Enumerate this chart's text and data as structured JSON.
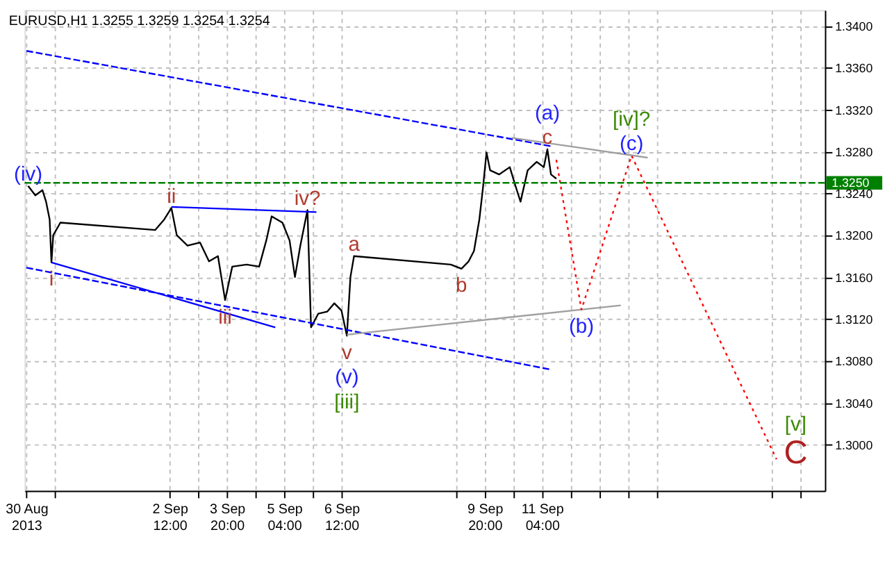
{
  "chart_data": {
    "type": "line",
    "title": "EURUSD,H1  1.3255 1.3259 1.3254 1.3254",
    "xlim": [
      "2013-08-30T03:00",
      "2013-09-17T18:00"
    ],
    "ylim": [
      1.2956,
      1.3415
    ],
    "xticks": [
      {
        "value": "2013-08-30T04:00",
        "label": "30 Aug 2013"
      },
      {
        "value": "2013-08-30T20:00",
        "label": null
      },
      {
        "value": "2013-09-02T12:00",
        "label": "2 Sep 12:00"
      },
      {
        "value": "2013-09-03T04:00",
        "label": null
      },
      {
        "value": "2013-09-03T20:00",
        "label": "3 Sep 20:00"
      },
      {
        "value": "2013-09-04T12:00",
        "label": null
      },
      {
        "value": "2013-09-05T04:00",
        "label": "5 Sep 04:00"
      },
      {
        "value": "2013-09-05T20:00",
        "label": null
      },
      {
        "value": "2013-09-06T12:00",
        "label": "6 Sep 12:00"
      },
      {
        "value": "2013-09-09T04:00",
        "label": null
      },
      {
        "value": "2013-09-09T20:00",
        "label": "9 Sep 20:00"
      },
      {
        "value": "2013-09-10T12:00",
        "label": null
      },
      {
        "value": "2013-09-11T04:00",
        "label": "11 Sep 04:00"
      },
      {
        "value": "2013-09-11T20:00",
        "label": null
      },
      {
        "value": "2013-09-12T12:00",
        "label": null
      },
      {
        "value": "2013-09-13T04:00",
        "label": null
      },
      {
        "value": "2013-09-13T20:00",
        "label": null
      },
      {
        "value": "2013-09-16T12:00",
        "label": null
      },
      {
        "value": "2013-09-17T04:00",
        "label": null
      }
    ],
    "yticks": [
      {
        "value": 1.3,
        "label": "1.3000"
      },
      {
        "value": 1.304,
        "label": "1.3040"
      },
      {
        "value": 1.308,
        "label": "1.3080"
      },
      {
        "value": 1.312,
        "label": "1.3120"
      },
      {
        "value": 1.316,
        "label": "1.3160"
      },
      {
        "value": 1.32,
        "label": "1.3200"
      },
      {
        "value": 1.324,
        "label": "1.3240"
      },
      {
        "value": 1.328,
        "label": "1.3280"
      },
      {
        "value": 1.332,
        "label": "1.3320"
      },
      {
        "value": 1.336,
        "label": "1.3360"
      },
      {
        "value": 1.34,
        "label": "1.3400"
      }
    ],
    "grid": true,
    "marker": "none",
    "series": [
      {
        "color": "#000000",
        "line_style": "solid",
        "x": [
          "2013-08-30T05:00",
          "2013-08-30T09:00",
          "2013-08-30T13:00",
          "2013-08-30T15:00",
          "2013-08-30T17:00",
          "2013-08-30T18:00",
          "2013-08-30T19:00",
          "2013-08-30T23:00",
          "2013-09-02T04:00",
          "2013-09-02T09:00",
          "2013-09-02T13:00",
          "2013-09-02T16:00",
          "2013-09-02T22:00",
          "2013-09-03T05:00",
          "2013-09-03T10:00",
          "2013-09-03T15:00",
          "2013-09-03T19:00",
          "2013-09-03T23:00",
          "2013-09-04T07:00",
          "2013-09-04T14:00",
          "2013-09-04T18:00",
          "2013-09-04T21:00",
          "2013-09-05T03:00",
          "2013-09-05T07:00",
          "2013-09-05T10:00",
          "2013-09-05T13:00",
          "2013-09-05T17:00",
          "2013-09-05T19:00",
          "2013-09-05T23:00",
          "2013-09-06T04:00",
          "2013-09-06T08:00",
          "2013-09-06T12:00",
          "2013-09-06T15:00",
          "2013-09-06T17:00",
          "2013-09-06T19:00",
          "2013-09-09T01:00",
          "2013-09-09T07:00",
          "2013-09-09T11:00",
          "2013-09-09T14:00",
          "2013-09-09T17:00",
          "2013-09-09T19:00",
          "2013-09-09T21:00",
          "2013-09-09T23:00",
          "2013-09-10T04:00",
          "2013-09-10T10:00",
          "2013-09-10T13:00",
          "2013-09-10T16:00",
          "2013-09-10T20:00",
          "2013-09-11T01:00",
          "2013-09-11T05:00",
          "2013-09-11T07:00",
          "2013-09-11T09:00",
          "2013-09-11T12:00"
        ],
        "values": [
          1.3247,
          1.3238,
          1.3243,
          1.3232,
          1.3215,
          1.3174,
          1.32,
          1.3212,
          1.3205,
          1.3215,
          1.3226,
          1.32,
          1.319,
          1.3193,
          1.3175,
          1.318,
          1.3138,
          1.317,
          1.3172,
          1.317,
          1.3195,
          1.3218,
          1.3212,
          1.3195,
          1.316,
          1.319,
          1.3224,
          1.3112,
          1.3125,
          1.3127,
          1.3135,
          1.3128,
          1.3104,
          1.316,
          1.318,
          1.3172,
          1.3168,
          1.3175,
          1.3185,
          1.3215,
          1.3245,
          1.3279,
          1.3262,
          1.3258,
          1.3265,
          1.3248,
          1.3232,
          1.3262,
          1.327,
          1.3265,
          1.3282,
          1.3258,
          1.3254
        ]
      },
      {
        "color": "#0000ff",
        "line_style": "dashed",
        "x": [
          "2013-08-30T04:00",
          "2013-09-11T09:00"
        ],
        "values": [
          1.3376,
          1.3285
        ]
      },
      {
        "color": "#0000ff",
        "line_style": "dashed",
        "x": [
          "2013-08-30T04:00",
          "2013-09-11T08:00"
        ],
        "values": [
          1.3169,
          1.3072
        ]
      },
      {
        "color": "#0000ff",
        "line_style": "solid",
        "x": [
          "2013-08-30T18:00",
          "2013-09-04T23:00"
        ],
        "values": [
          1.3174,
          1.3112
        ]
      },
      {
        "color": "#0000ff",
        "line_style": "solid",
        "x": [
          "2013-09-02T13:00",
          "2013-09-05T22:00"
        ],
        "values": [
          1.3227,
          1.3222
        ]
      },
      {
        "color": "#a0a0a0",
        "line_style": "solid",
        "x": [
          "2013-09-10T11:00",
          "2013-09-13T15:00"
        ],
        "values": [
          1.3293,
          1.3274
        ]
      },
      {
        "color": "#a0a0a0",
        "line_style": "solid",
        "x": [
          "2013-09-06T15:00",
          "2013-09-13T00:00"
        ],
        "values": [
          1.3105,
          1.3133
        ]
      },
      {
        "color": "#ff0000",
        "line_style": "dotted",
        "x": [
          "2013-09-11T12:00",
          "2013-09-12T02:00",
          "2013-09-13T06:00",
          "2013-09-16T15:00"
        ],
        "values": [
          1.3272,
          1.3129,
          1.3276,
          1.2986
        ]
      }
    ],
    "ref_lines": [
      {
        "axis": "y",
        "value": 1.325,
        "label": "1.3250",
        "color": "#008000",
        "line_style": "dashed"
      }
    ],
    "annotations": [
      {
        "text": "(iv)",
        "x": "2013-08-30T05:00",
        "y": 1.3247
      },
      {
        "text": "i",
        "x": "2013-08-30T18:00",
        "y": 1.3174
      },
      {
        "text": "ii",
        "x": "2013-09-02T13:00",
        "y": 1.3226
      },
      {
        "text": "iii",
        "x": "2013-09-03T19:00",
        "y": 1.3138
      },
      {
        "text": "iv?",
        "x": "2013-09-05T17:00",
        "y": 1.3224
      },
      {
        "text": "a",
        "x": "2013-09-06T19:00",
        "y": 1.318
      },
      {
        "text": "b",
        "x": "2013-09-09T07:00",
        "y": 1.3168
      },
      {
        "text": "v",
        "x": "2013-09-06T15:00",
        "y": 1.3104
      },
      {
        "text": "(v)",
        "x": "2013-09-06T15:00",
        "y": 1.3104
      },
      {
        "text": "[iii]",
        "x": "2013-09-06T15:00",
        "y": 1.3104
      },
      {
        "text": "(a)",
        "x": "2013-09-11T07:00",
        "y": 1.3282
      },
      {
        "text": "c",
        "x": "2013-09-11T07:00",
        "y": 1.3282
      },
      {
        "text": "[iv]?",
        "x": "2013-09-13T06:00",
        "y": 1.3276
      },
      {
        "text": "(c)",
        "x": "2013-09-13T06:00",
        "y": 1.3276
      },
      {
        "text": "(b)",
        "x": "2013-09-12T02:00",
        "y": 1.3129
      },
      {
        "text": "[v]",
        "x": "2013-09-16T15:00",
        "y": 1.2986
      },
      {
        "text": "C",
        "x": "2013-09-16T15:00",
        "y": 1.2986
      }
    ]
  }
}
